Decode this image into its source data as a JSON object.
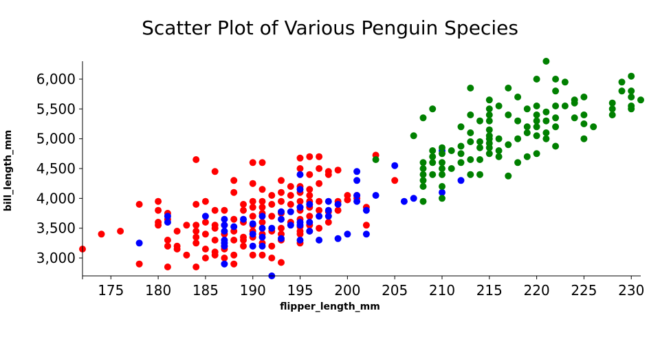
{
  "chart_data": {
    "type": "scatter",
    "title": "Scatter Plot of Various Penguin Species",
    "xlabel": "flipper_length_mm",
    "ylabel": "bill_length_mm",
    "xlim": [
      172,
      231
    ],
    "ylim": [
      2700,
      6300
    ],
    "grid": false,
    "legend": "none",
    "x_ticks": [
      175,
      180,
      185,
      190,
      195,
      200,
      205,
      210,
      215,
      220,
      225,
      230
    ],
    "x_tick_labels": [
      "175",
      "180",
      "185",
      "190",
      "195",
      "200",
      "205",
      "210",
      "215",
      "220",
      "225",
      "230"
    ],
    "y_ticks": [
      3000,
      3500,
      4000,
      4500,
      5000,
      5500,
      6000
    ],
    "y_tick_labels": [
      "3,000",
      "3,500",
      "4,000",
      "4,500",
      "5,000",
      "5,500",
      "6,000"
    ],
    "series": [
      {
        "color": "#ff0000",
        "points": [
          [
            172,
            3150
          ],
          [
            174,
            3400
          ],
          [
            176,
            3450
          ],
          [
            178,
            3900
          ],
          [
            178,
            2900
          ],
          [
            180,
            3950
          ],
          [
            180,
            3800
          ],
          [
            180,
            3600
          ],
          [
            180,
            3550
          ],
          [
            181,
            3750
          ],
          [
            181,
            3650
          ],
          [
            181,
            3300
          ],
          [
            181,
            3200
          ],
          [
            181,
            2850
          ],
          [
            182,
            3450
          ],
          [
            182,
            3200
          ],
          [
            182,
            3150
          ],
          [
            183,
            3550
          ],
          [
            183,
            3050
          ],
          [
            184,
            4650
          ],
          [
            184,
            3900
          ],
          [
            184,
            3550
          ],
          [
            184,
            3450
          ],
          [
            184,
            3350
          ],
          [
            184,
            3250
          ],
          [
            184,
            2850
          ],
          [
            185,
            3950
          ],
          [
            185,
            3600
          ],
          [
            185,
            3400
          ],
          [
            185,
            3150
          ],
          [
            185,
            3000
          ],
          [
            186,
            4450
          ],
          [
            186,
            3800
          ],
          [
            186,
            3550
          ],
          [
            186,
            3500
          ],
          [
            186,
            3300
          ],
          [
            186,
            3100
          ],
          [
            186,
            3050
          ],
          [
            187,
            3800
          ],
          [
            187,
            3550
          ],
          [
            187,
            3400
          ],
          [
            187,
            3200
          ],
          [
            187,
            3150
          ],
          [
            187,
            3000
          ],
          [
            188,
            4300
          ],
          [
            188,
            4100
          ],
          [
            188,
            3650
          ],
          [
            188,
            3450
          ],
          [
            188,
            3300
          ],
          [
            188,
            3050
          ],
          [
            188,
            2900
          ],
          [
            189,
            3900
          ],
          [
            189,
            3800
          ],
          [
            189,
            3600
          ],
          [
            189,
            3350
          ],
          [
            189,
            3300
          ],
          [
            189,
            3200
          ],
          [
            190,
            4600
          ],
          [
            190,
            4250
          ],
          [
            190,
            3950
          ],
          [
            190,
            3850
          ],
          [
            190,
            3700
          ],
          [
            190,
            3550
          ],
          [
            190,
            3450
          ],
          [
            190,
            3350
          ],
          [
            190,
            3050
          ],
          [
            191,
            4600
          ],
          [
            191,
            4150
          ],
          [
            191,
            3950
          ],
          [
            191,
            3850
          ],
          [
            191,
            3750
          ],
          [
            191,
            3600
          ],
          [
            191,
            3400
          ],
          [
            191,
            3250
          ],
          [
            191,
            3050
          ],
          [
            192,
            4050
          ],
          [
            192,
            3900
          ],
          [
            192,
            3700
          ],
          [
            192,
            3450
          ],
          [
            192,
            3200
          ],
          [
            192,
            3000
          ],
          [
            193,
            4300
          ],
          [
            193,
            4100
          ],
          [
            193,
            3950
          ],
          [
            193,
            3750
          ],
          [
            193,
            3500
          ],
          [
            193,
            3400
          ],
          [
            193,
            3300
          ],
          [
            193,
            2925
          ],
          [
            194,
            4200
          ],
          [
            194,
            4050
          ],
          [
            194,
            3900
          ],
          [
            194,
            3600
          ],
          [
            195,
            4675
          ],
          [
            195,
            4500
          ],
          [
            195,
            4200
          ],
          [
            195,
            4100
          ],
          [
            195,
            3950
          ],
          [
            195,
            3850
          ],
          [
            195,
            3800
          ],
          [
            195,
            3650
          ],
          [
            195,
            3525
          ],
          [
            195,
            3450
          ],
          [
            195,
            3400
          ],
          [
            195,
            3250
          ],
          [
            196,
            4700
          ],
          [
            196,
            4400
          ],
          [
            196,
            4150
          ],
          [
            196,
            4050
          ],
          [
            196,
            3950
          ],
          [
            196,
            3850
          ],
          [
            196,
            3700
          ],
          [
            196,
            3550
          ],
          [
            196,
            3450
          ],
          [
            197,
            4700
          ],
          [
            197,
            4500
          ],
          [
            197,
            4250
          ],
          [
            197,
            3950
          ],
          [
            197,
            3800
          ],
          [
            197,
            3500
          ],
          [
            198,
            4450
          ],
          [
            198,
            4400
          ],
          [
            198,
            3775
          ],
          [
            198,
            3600
          ],
          [
            199,
            4475
          ],
          [
            199,
            3950
          ],
          [
            199,
            3800
          ],
          [
            200,
            4050
          ],
          [
            200,
            3975
          ],
          [
            201,
            4050
          ],
          [
            201,
            4000
          ],
          [
            202,
            3850
          ],
          [
            202,
            3550
          ],
          [
            203,
            4725
          ],
          [
            205,
            4300
          ]
        ]
      },
      {
        "color": "#0000ff",
        "points": [
          [
            178,
            3250
          ],
          [
            181,
            3700
          ],
          [
            181,
            3600
          ],
          [
            185,
            3700
          ],
          [
            187,
            3650
          ],
          [
            187,
            3550
          ],
          [
            187,
            3450
          ],
          [
            187,
            3300
          ],
          [
            187,
            3250
          ],
          [
            187,
            3200
          ],
          [
            187,
            2900
          ],
          [
            188,
            3525
          ],
          [
            189,
            3650
          ],
          [
            190,
            3575
          ],
          [
            190,
            3400
          ],
          [
            190,
            3200
          ],
          [
            191,
            3700
          ],
          [
            191,
            3500
          ],
          [
            191,
            3350
          ],
          [
            191,
            3200
          ],
          [
            192,
            2700
          ],
          [
            192,
            3500
          ],
          [
            193,
            3775
          ],
          [
            193,
            3650
          ],
          [
            193,
            3325
          ],
          [
            194,
            3775
          ],
          [
            194,
            3550
          ],
          [
            195,
            4400
          ],
          [
            195,
            4150
          ],
          [
            195,
            3850
          ],
          [
            195,
            3600
          ],
          [
            195,
            3550
          ],
          [
            195,
            3300
          ],
          [
            196,
            3900
          ],
          [
            196,
            3600
          ],
          [
            196,
            3450
          ],
          [
            197,
            3700
          ],
          [
            197,
            3300
          ],
          [
            198,
            3950
          ],
          [
            198,
            3800
          ],
          [
            198,
            3700
          ],
          [
            199,
            3325
          ],
          [
            199,
            3900
          ],
          [
            200,
            3400
          ],
          [
            201,
            4450
          ],
          [
            201,
            4300
          ],
          [
            201,
            4050
          ],
          [
            201,
            3950
          ],
          [
            202,
            3800
          ],
          [
            202,
            3400
          ],
          [
            203,
            4050
          ],
          [
            205,
            4550
          ],
          [
            206,
            3950
          ],
          [
            207,
            4000
          ],
          [
            210,
            4800
          ],
          [
            210,
            4100
          ],
          [
            212,
            4300
          ]
        ]
      },
      {
        "color": "#008000",
        "points": [
          [
            203,
            4650
          ],
          [
            207,
            5050
          ],
          [
            208,
            5350
          ],
          [
            208,
            4600
          ],
          [
            208,
            4500
          ],
          [
            208,
            4400
          ],
          [
            208,
            4300
          ],
          [
            208,
            4200
          ],
          [
            208,
            3950
          ],
          [
            209,
            5500
          ],
          [
            209,
            4800
          ],
          [
            209,
            4700
          ],
          [
            209,
            4600
          ],
          [
            209,
            4400
          ],
          [
            210,
            4850
          ],
          [
            210,
            4750
          ],
          [
            210,
            4600
          ],
          [
            210,
            4500
          ],
          [
            210,
            4400
          ],
          [
            210,
            4200
          ],
          [
            210,
            4000
          ],
          [
            211,
            4800
          ],
          [
            211,
            4500
          ],
          [
            212,
            5200
          ],
          [
            212,
            4875
          ],
          [
            212,
            4750
          ],
          [
            212,
            4600
          ],
          [
            213,
            5850
          ],
          [
            213,
            5400
          ],
          [
            213,
            5100
          ],
          [
            213,
            4950
          ],
          [
            213,
            4650
          ],
          [
            213,
            4400
          ],
          [
            214,
            5300
          ],
          [
            214,
            4950
          ],
          [
            214,
            4850
          ],
          [
            214,
            4650
          ],
          [
            214,
            4400
          ],
          [
            215,
            5650
          ],
          [
            215,
            5500
          ],
          [
            215,
            5400
          ],
          [
            215,
            5300
          ],
          [
            215,
            5150
          ],
          [
            215,
            5050
          ],
          [
            215,
            5000
          ],
          [
            215,
            4925
          ],
          [
            215,
            4850
          ],
          [
            215,
            4750
          ],
          [
            216,
            5550
          ],
          [
            216,
            5000
          ],
          [
            216,
            4800
          ],
          [
            216,
            4700
          ],
          [
            217,
            5850
          ],
          [
            217,
            5400
          ],
          [
            217,
            4900
          ],
          [
            217,
            4375
          ],
          [
            218,
            5700
          ],
          [
            218,
            5300
          ],
          [
            218,
            5000
          ],
          [
            218,
            4600
          ],
          [
            219,
            5500
          ],
          [
            219,
            5200
          ],
          [
            219,
            5100
          ],
          [
            219,
            4700
          ],
          [
            220,
            6000
          ],
          [
            220,
            5550
          ],
          [
            220,
            5400
          ],
          [
            220,
            5300
          ],
          [
            220,
            5200
          ],
          [
            220,
            5050
          ],
          [
            220,
            4750
          ],
          [
            221,
            6300
          ],
          [
            221,
            5450
          ],
          [
            221,
            5300
          ],
          [
            221,
            5100
          ],
          [
            221,
            5000
          ],
          [
            222,
            5800
          ],
          [
            222,
            6000
          ],
          [
            222,
            5550
          ],
          [
            222,
            5350
          ],
          [
            222,
            5200
          ],
          [
            222,
            4875
          ],
          [
            223,
            5950
          ],
          [
            223,
            5550
          ],
          [
            224,
            5650
          ],
          [
            224,
            5350
          ],
          [
            224,
            5600
          ],
          [
            225,
            5700
          ],
          [
            225,
            5400
          ],
          [
            225,
            5250
          ],
          [
            225,
            5000
          ],
          [
            226,
            5200
          ],
          [
            228,
            5600
          ],
          [
            228,
            5500
          ],
          [
            228,
            5400
          ],
          [
            229,
            5950
          ],
          [
            229,
            5800
          ],
          [
            230,
            6050
          ],
          [
            230,
            5800
          ],
          [
            230,
            5700
          ],
          [
            230,
            5550
          ],
          [
            230,
            5500
          ],
          [
            231,
            5650
          ]
        ]
      }
    ]
  }
}
